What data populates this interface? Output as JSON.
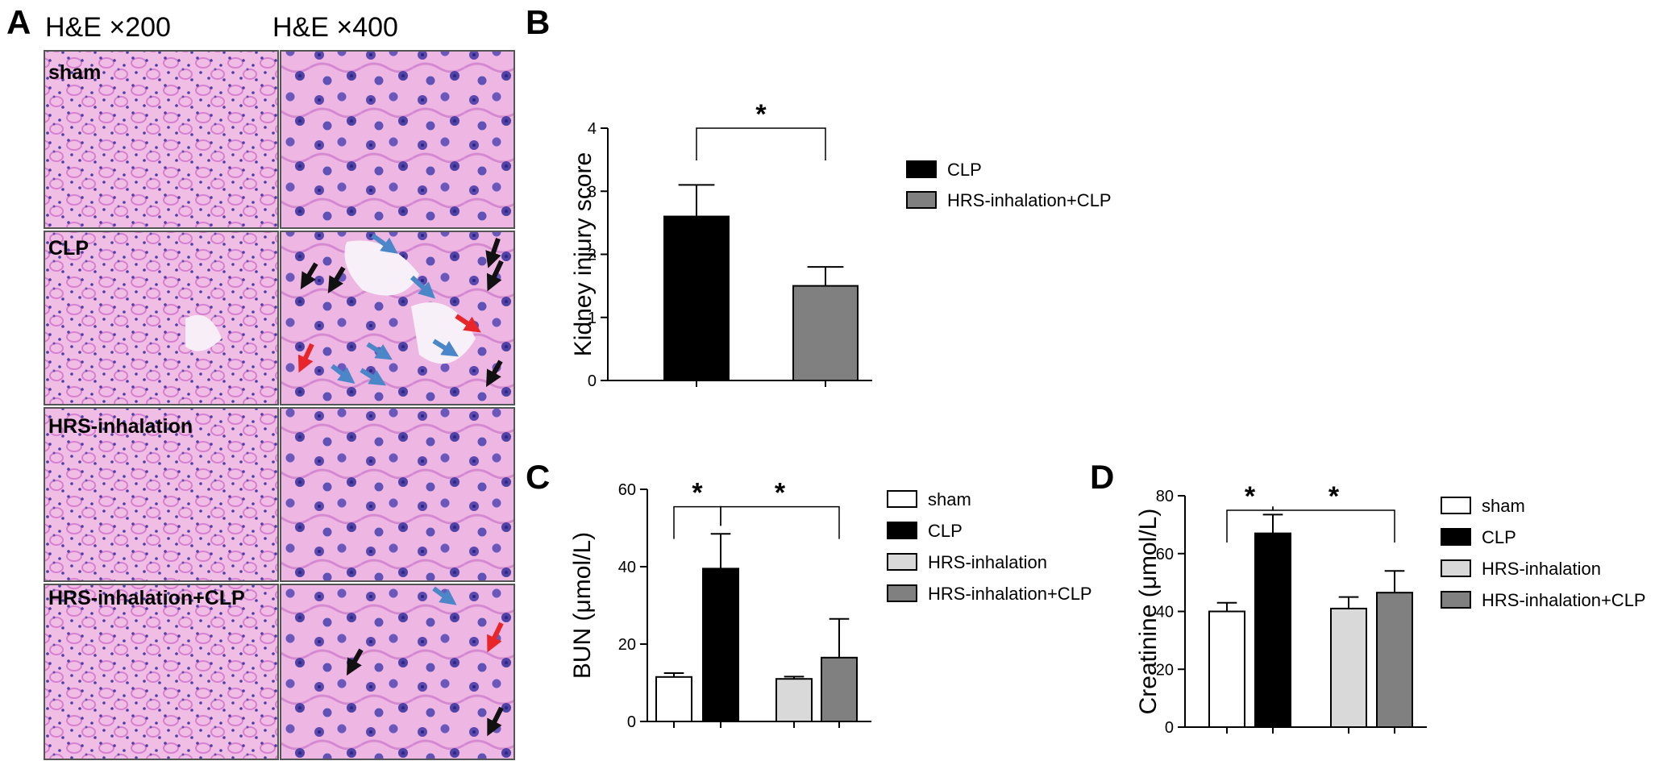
{
  "panels": {
    "A": {
      "letter": "A",
      "col_labels": [
        "H&E ×200",
        "H&E ×400"
      ],
      "row_labels": [
        "sham",
        "CLP",
        "HRS-inhalation",
        "HRS-inhalation+CLP"
      ]
    },
    "B": {
      "letter": "B"
    },
    "C": {
      "letter": "C"
    },
    "D": {
      "letter": "D"
    }
  },
  "colors": {
    "tissue_pink": "#f0bde4",
    "tissue_nuclei": "#4a3fa8",
    "arrow_black": "#111111",
    "arrow_blue": "#4a86c8",
    "arrow_red": "#e8262a",
    "sham": "#ffffff",
    "CLP": "#000000",
    "HRS-inhalation": "#d9d9d9",
    "HRS-inhalation+CLP": "#808080"
  },
  "chart_data": [
    {
      "panel": "B",
      "type": "bar",
      "categories": [
        "CLP",
        "HRS-inhalation+CLP"
      ],
      "values": [
        2.6,
        1.5
      ],
      "error": [
        0.5,
        0.3
      ],
      "ylabel": "Kidney injury score",
      "ylim": [
        0,
        4
      ],
      "yticks": [
        0,
        1,
        2,
        3,
        4
      ],
      "legend": [
        "CLP",
        "HRS-inhalation+CLP"
      ],
      "significance": [
        {
          "between": [
            0,
            1
          ],
          "label": "*"
        }
      ]
    },
    {
      "panel": "C",
      "type": "bar",
      "categories": [
        "sham",
        "CLP",
        "HRS-inhalation",
        "HRS-inhalation+CLP"
      ],
      "values": [
        11.5,
        39.5,
        11,
        16.5
      ],
      "error": [
        1,
        9,
        0.6,
        10
      ],
      "ylabel": "BUN (μmol/L)",
      "ylim": [
        0,
        60
      ],
      "yticks": [
        0,
        20,
        40,
        60
      ],
      "legend": [
        "sham",
        "CLP",
        "HRS-inhalation",
        "HRS-inhalation+CLP"
      ],
      "significance": [
        {
          "between": [
            0,
            1
          ],
          "label": "*"
        },
        {
          "between": [
            1,
            3
          ],
          "label": "*"
        }
      ]
    },
    {
      "panel": "D",
      "type": "bar",
      "categories": [
        "sham",
        "CLP",
        "HRS-inhalation",
        "HRS-inhalation+CLP"
      ],
      "values": [
        40,
        67,
        41,
        46.5
      ],
      "error": [
        3,
        6.5,
        4,
        7.5
      ],
      "ylabel": "Creatinine (μmol/L)",
      "ylim": [
        0,
        80
      ],
      "yticks": [
        0,
        20,
        40,
        60,
        80
      ],
      "legend": [
        "sham",
        "CLP",
        "HRS-inhalation",
        "HRS-inhalation+CLP"
      ],
      "significance": [
        {
          "between": [
            0,
            1
          ],
          "label": "*"
        },
        {
          "between": [
            1,
            3
          ],
          "label": "*"
        }
      ]
    }
  ]
}
